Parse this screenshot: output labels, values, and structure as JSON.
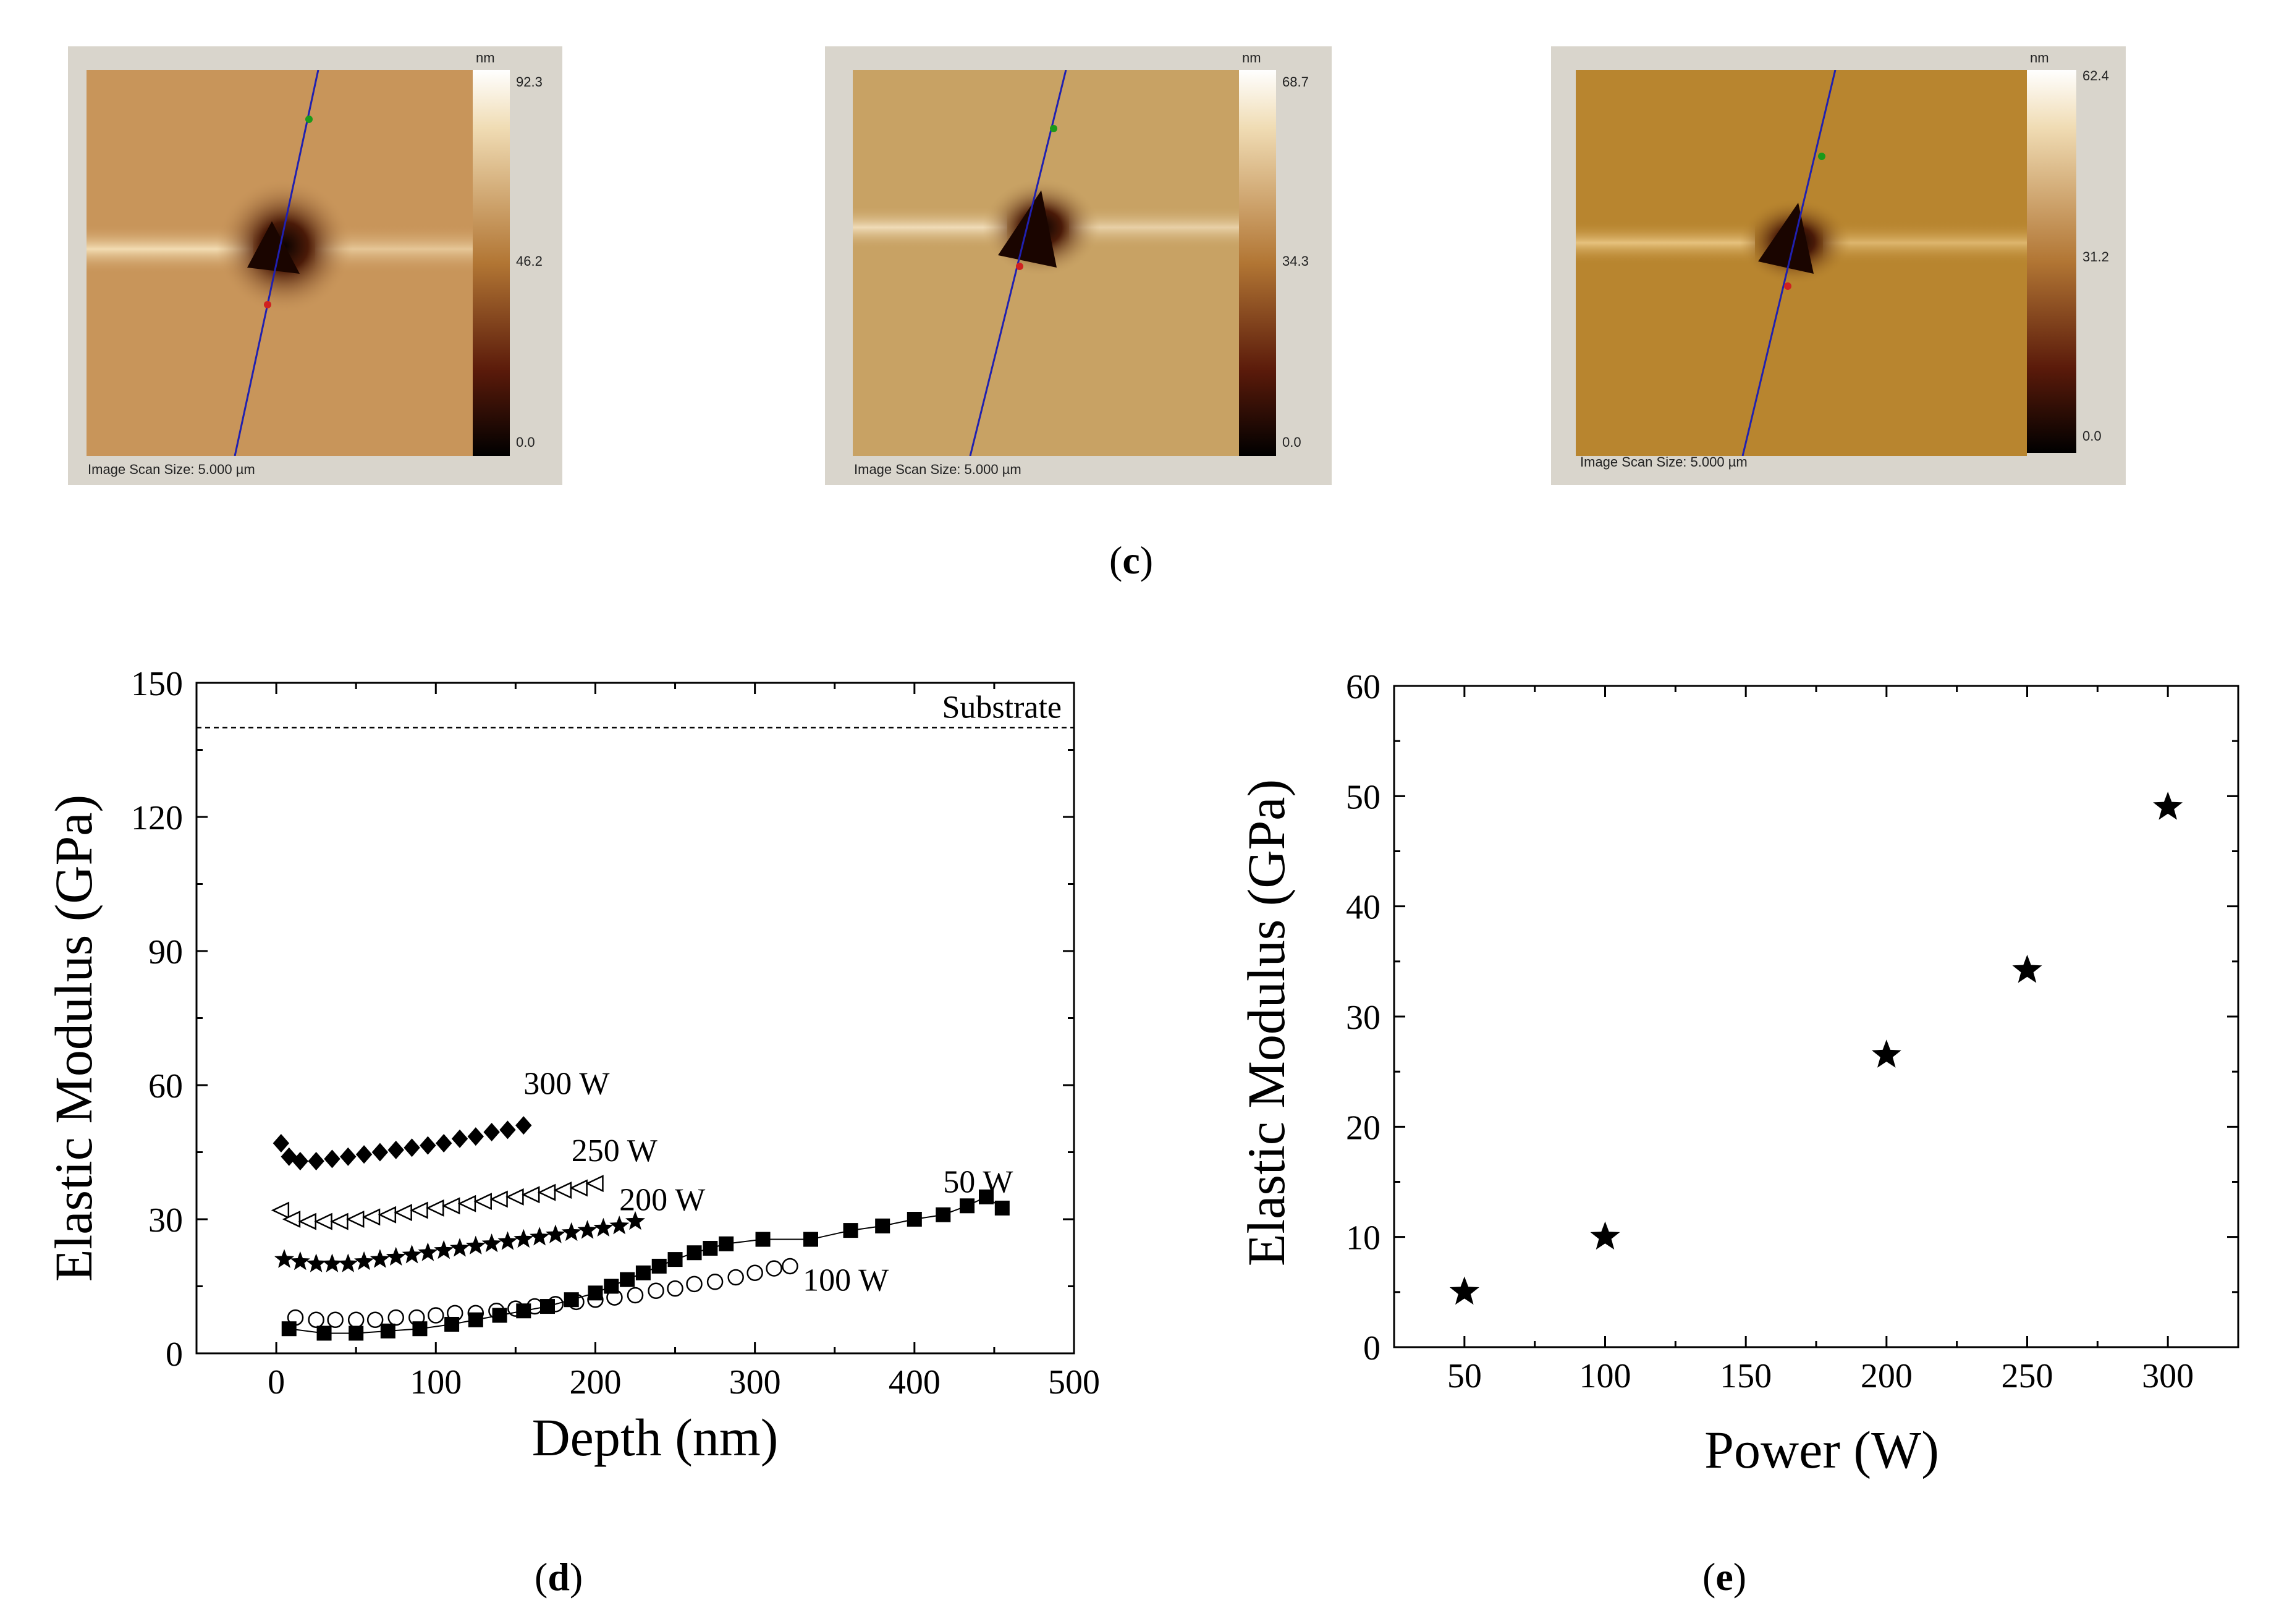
{
  "afm_images": [
    {
      "unit": "nm",
      "max": "92.3",
      "mid": "46.2",
      "min": "0.0",
      "scan_label": "Image Scan Size:  5.000 µm",
      "base": "#c8955a"
    },
    {
      "unit": "nm",
      "max": "68.7",
      "mid": "34.3",
      "min": "0.0",
      "scan_label": "Image Scan Size:  5.000 µm",
      "base": "#c8a264"
    },
    {
      "unit": "nm",
      "max": "62.4",
      "mid": "31.2",
      "min": "0.0",
      "scan_label": "Image Scan Size:  5.000 µm",
      "base": "#b8852f"
    }
  ],
  "captions": {
    "c": "c",
    "d": "d",
    "e": "e"
  },
  "chart_data": [
    {
      "type": "scatter",
      "panel": "d",
      "xlabel": "Depth (nm)",
      "ylabel": "Elastic Modulus (GPa)",
      "xlim": [
        -50,
        500
      ],
      "ylim": [
        0,
        150
      ],
      "xticks": [
        "0",
        "100",
        "200",
        "300",
        "400",
        "500"
      ],
      "yticks": [
        "0",
        "30",
        "60",
        "90",
        "120",
        "150"
      ],
      "reference_line": {
        "label": "Substrate",
        "y": 140
      },
      "series": [
        {
          "name": "300 W",
          "marker": "filled-diamond",
          "x": [
            3,
            8,
            15,
            25,
            35,
            45,
            55,
            65,
            75,
            85,
            95,
            105,
            115,
            125,
            135,
            145,
            155
          ],
          "y": [
            47,
            44,
            43,
            43,
            43.5,
            44,
            44.5,
            45,
            45.5,
            46,
            46.5,
            47,
            48,
            48.5,
            49.5,
            50,
            51
          ]
        },
        {
          "name": "250 W",
          "marker": "open-triangle-left",
          "x": [
            3,
            10,
            20,
            30,
            40,
            50,
            60,
            70,
            80,
            90,
            100,
            110,
            120,
            130,
            140,
            150,
            160,
            170,
            180,
            190,
            200
          ],
          "y": [
            32,
            30,
            29.5,
            29.5,
            29.5,
            30,
            30.5,
            31,
            31.5,
            32,
            32.5,
            33,
            33.5,
            34,
            34.5,
            35,
            35.5,
            36,
            36.5,
            37,
            38
          ]
        },
        {
          "name": "200 W",
          "marker": "filled-star",
          "x": [
            5,
            15,
            25,
            35,
            45,
            55,
            65,
            75,
            85,
            95,
            105,
            115,
            125,
            135,
            145,
            155,
            165,
            175,
            185,
            195,
            205,
            215,
            225
          ],
          "y": [
            21,
            20.5,
            20,
            20,
            20,
            20.5,
            21,
            21.5,
            22,
            22.5,
            23,
            23.5,
            24,
            24.5,
            25,
            25.5,
            26,
            26.5,
            27,
            27.5,
            28,
            28.5,
            29.5
          ]
        },
        {
          "name": "100 W",
          "marker": "open-circle",
          "x": [
            12,
            25,
            37,
            50,
            62,
            75,
            88,
            100,
            112,
            125,
            138,
            150,
            162,
            175,
            188,
            200,
            212,
            225,
            238,
            250,
            262,
            275,
            288,
            300,
            312,
            322
          ],
          "y": [
            8,
            7.5,
            7.5,
            7.5,
            7.5,
            8,
            8,
            8.5,
            9,
            9,
            9.5,
            10,
            10.5,
            11,
            11.5,
            12,
            12.5,
            13,
            14,
            14.5,
            15.5,
            16,
            17,
            18,
            19,
            19.5
          ]
        },
        {
          "name": "50 W",
          "marker": "filled-square",
          "x": [
            8,
            30,
            50,
            70,
            90,
            110,
            125,
            140,
            155,
            170,
            185,
            200,
            210,
            220,
            230,
            240,
            250,
            262,
            272,
            282,
            305,
            335,
            360,
            380,
            400,
            418,
            433,
            445,
            455
          ],
          "y": [
            5.5,
            4.5,
            4.5,
            5,
            5.5,
            6.5,
            7.5,
            8.5,
            9.5,
            10.5,
            12,
            13.5,
            15,
            16.5,
            18,
            19.5,
            21,
            22.5,
            23.5,
            24.5,
            25.5,
            25.5,
            27.5,
            28.5,
            30,
            31,
            33,
            35,
            32.5
          ]
        }
      ]
    },
    {
      "type": "scatter",
      "panel": "e",
      "xlabel": "Power (W)",
      "ylabel": "Elastic Modulus (GPa)",
      "xlim": [
        25,
        325
      ],
      "ylim": [
        0,
        60
      ],
      "xticks": [
        "50",
        "100",
        "150",
        "200",
        "250",
        "300"
      ],
      "yticks": [
        "0",
        "10",
        "20",
        "30",
        "40",
        "50",
        "60"
      ],
      "series": [
        {
          "name": "Elastic Modulus",
          "marker": "filled-star",
          "x": [
            50,
            100,
            200,
            250,
            300
          ],
          "y": [
            5,
            10,
            26.5,
            34.2,
            49
          ]
        }
      ]
    }
  ]
}
